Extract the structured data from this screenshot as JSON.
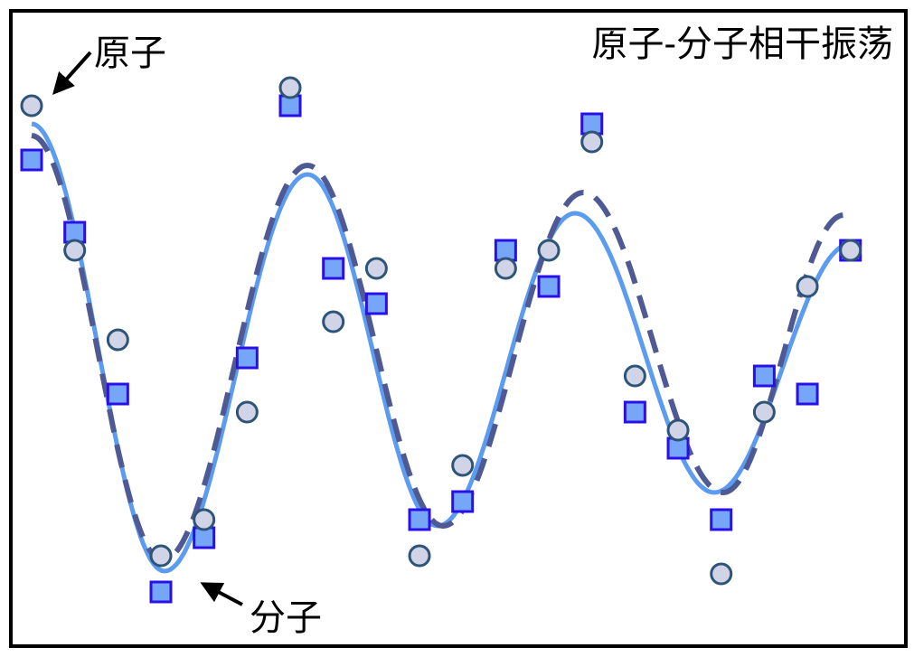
{
  "chart_data": {
    "type": "scatter",
    "title": "原子-分子相干振荡",
    "xlabel": "",
    "ylabel": "",
    "axes_visible": false,
    "grid": false,
    "annotations": [
      {
        "text": "原子",
        "target_series": "circles",
        "arrow": true
      },
      {
        "text": "分子",
        "target_series": "fit-solid",
        "arrow": true
      }
    ],
    "x": [
      0,
      1,
      2,
      3,
      4,
      5,
      6,
      7,
      8,
      9,
      10,
      11,
      12,
      13,
      14,
      15,
      16,
      17,
      18,
      19
    ],
    "series": [
      {
        "id": "circles",
        "marker": "circle",
        "fill": "#d0d4e6",
        "stroke": "#2e5478",
        "values": [
          2.59,
          0.99,
          0.0,
          -2.39,
          -1.99,
          -0.8,
          2.79,
          0.2,
          0.79,
          -2.39,
          -1.39,
          0.79,
          0.99,
          2.19,
          -0.4,
          -1.0,
          -2.59,
          -0.8,
          0.59,
          0.99
        ]
      },
      {
        "id": "squares",
        "marker": "square",
        "fill": "#76a6f8",
        "stroke": "#2a10e8",
        "values": [
          1.99,
          1.19,
          -0.6,
          -2.79,
          -2.19,
          -0.2,
          2.59,
          0.79,
          0.4,
          -1.99,
          -1.79,
          0.99,
          0.59,
          2.39,
          -0.8,
          -1.2,
          -1.99,
          -0.4,
          -0.6,
          0.99
        ]
      }
    ],
    "curves": [
      {
        "id": "fit-solid",
        "style": "solid",
        "color": "#5b9bf0",
        "extrema": [
          [
            0,
            2.39
          ],
          [
            3.08,
            -2.56
          ],
          [
            6.4,
            1.83
          ],
          [
            9.42,
            -2.06
          ],
          [
            12.61,
            1.4
          ],
          [
            15.84,
            -1.69
          ],
          [
            19,
            1.06
          ]
        ]
      },
      {
        "id": "fit-dashed",
        "style": "dashed",
        "color": "#4f5a94",
        "extrema": [
          [
            0,
            2.26
          ],
          [
            3.04,
            -2.44
          ],
          [
            6.4,
            1.93
          ],
          [
            9.55,
            -2.06
          ],
          [
            12.8,
            1.63
          ],
          [
            16.05,
            -1.69
          ],
          [
            18.84,
            1.38
          ]
        ]
      }
    ]
  }
}
